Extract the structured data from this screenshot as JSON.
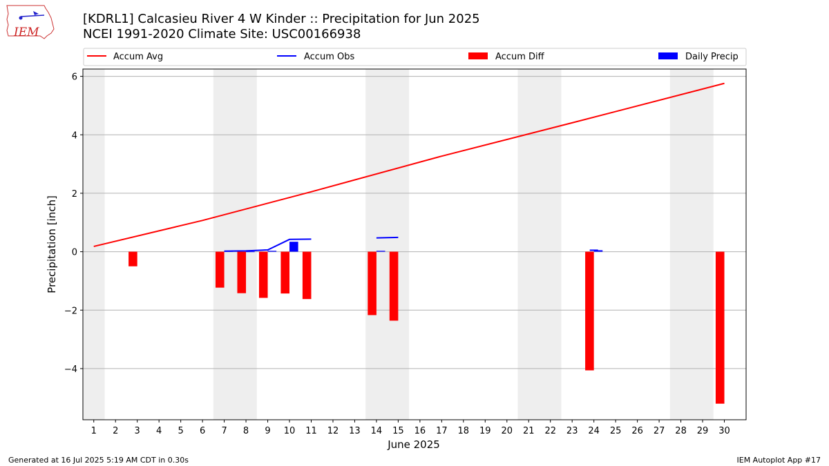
{
  "header": {
    "logo_text": "IEM",
    "title_line1": "[KDRL1] Calcasieu River 4 W Kinder :: Precipitation for Jun 2025",
    "title_line2": "NCEI 1991-2020 Climate Site: USC00166938"
  },
  "footer": {
    "left": "Generated at 16 Jul 2025 5:19 AM CDT in 0.30s",
    "right": "IEM Autoplot App #17"
  },
  "colors": {
    "avg": "#ff0000",
    "obs": "#0000ff",
    "diff": "#ff0000",
    "daily": "#0000ff",
    "weekend_band": "#eeeeee",
    "grid": "#b0b0b0"
  },
  "chart_data": {
    "type": "bar",
    "title": "[KDRL1] Calcasieu River 4 W Kinder :: Precipitation for Jun 2025",
    "subtitle": "NCEI 1991-2020 Climate Site: USC00166938",
    "xlabel": "June 2025",
    "ylabel": "Precipitation [inch]",
    "ylim": [
      -5.75,
      6.25
    ],
    "xlim": [
      0.5,
      31.0
    ],
    "yticks": [
      -4,
      -2,
      0,
      2,
      4,
      6
    ],
    "ytick_labels": [
      "−4",
      "−2",
      "0",
      "2",
      "4",
      "6"
    ],
    "x": [
      1,
      2,
      3,
      4,
      5,
      6,
      7,
      8,
      9,
      10,
      11,
      12,
      13,
      14,
      15,
      16,
      17,
      18,
      19,
      20,
      21,
      22,
      23,
      24,
      25,
      26,
      27,
      28,
      29,
      30
    ],
    "xtick_labels": [
      "1",
      "2",
      "3",
      "4",
      "5",
      "6",
      "7",
      "8",
      "9",
      "10",
      "11",
      "12",
      "13",
      "14",
      "15",
      "16",
      "17",
      "18",
      "19",
      "20",
      "21",
      "22",
      "23",
      "24",
      "25",
      "26",
      "27",
      "28",
      "29",
      "30"
    ],
    "grid": "horizontal",
    "legend_position": "top",
    "weekend_bands": [
      [
        0.5,
        1.5
      ],
      [
        6.5,
        8.5
      ],
      [
        13.5,
        15.5
      ],
      [
        20.5,
        22.5
      ],
      [
        27.5,
        29.5
      ]
    ],
    "series": [
      {
        "name": "Accum Avg",
        "kind": "line",
        "x": [
          1,
          6,
          11,
          17,
          23,
          30
        ],
        "values": [
          0.18,
          1.07,
          2.05,
          3.27,
          4.41,
          5.76
        ]
      },
      {
        "name": "Accum Obs",
        "kind": "line",
        "segments": [
          {
            "x": [
              7,
              8,
              9,
              10,
              11
            ],
            "values": [
              0.02,
              0.03,
              0.06,
              0.42,
              0.43
            ]
          },
          {
            "x": [
              14,
              15
            ],
            "values": [
              0.47,
              0.49
            ]
          },
          {
            "x": [
              24
            ],
            "values": [
              0.05
            ]
          }
        ]
      },
      {
        "name": "Accum Diff",
        "kind": "bar",
        "offset": -0.2,
        "points": [
          [
            3,
            -0.5
          ],
          [
            7,
            -1.23
          ],
          [
            8,
            -1.42
          ],
          [
            9,
            -1.58
          ],
          [
            10,
            -1.43
          ],
          [
            11,
            -1.62
          ],
          [
            14,
            -2.17
          ],
          [
            15,
            -2.36
          ],
          [
            24,
            -4.06
          ],
          [
            30,
            -5.2
          ]
        ]
      },
      {
        "name": "Daily Precip",
        "kind": "bar",
        "offset": 0.2,
        "points": [
          [
            7,
            0.02
          ],
          [
            8,
            0.01
          ],
          [
            9,
            0.03
          ],
          [
            10,
            0.34
          ],
          [
            14,
            0.03
          ],
          [
            24,
            0.05
          ]
        ]
      }
    ]
  }
}
